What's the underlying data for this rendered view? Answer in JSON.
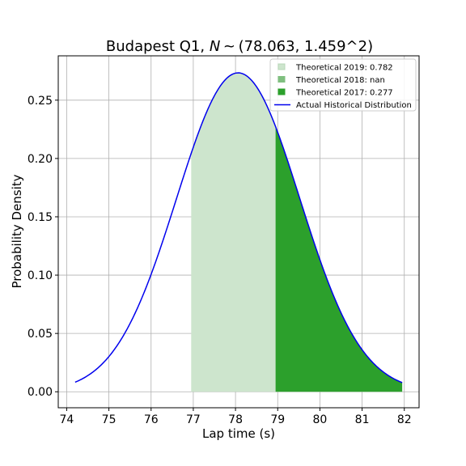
{
  "chart_data": {
    "type": "area",
    "title": "Budapest Q1,  N ~ (78.063, 1.459^2)",
    "title_parts": {
      "place": "Budapest Q1, ",
      "var": "N",
      "rest": " ~ (78.063, 1.459^2)"
    },
    "xlabel": "Lap time (s)",
    "ylabel": "Probability Density",
    "xlim": [
      73.8,
      82.35
    ],
    "ylim": [
      -0.0137,
      0.288
    ],
    "xticks": [
      74,
      75,
      76,
      77,
      78,
      79,
      80,
      81,
      82
    ],
    "yticks": [
      0.0,
      0.05,
      0.1,
      0.15,
      0.2,
      0.25
    ],
    "ytick_labels": [
      "0.00",
      "0.05",
      "0.10",
      "0.15",
      "0.20",
      "0.25"
    ],
    "grid": true,
    "legend_position": "top-right",
    "distribution": {
      "mean": 78.063,
      "std": 1.459,
      "peak_scale": 0.2734,
      "x_start": 74.2,
      "x_end": 81.95
    },
    "series": [
      {
        "name": "Theoretical 2019: 0.782",
        "kind": "fill",
        "from": 76.95,
        "to": 81.95,
        "color": "#cde5cd"
      },
      {
        "name": "Theoretical 2018: nan",
        "kind": "fill",
        "from": null,
        "to": null,
        "color": "#7fbf7f"
      },
      {
        "name": "Theoretical 2017: 0.277",
        "kind": "fill",
        "from": 78.95,
        "to": 81.95,
        "color": "#2ca02c"
      },
      {
        "name": "Actual Historical Distribution",
        "kind": "line",
        "color": "#0000ee"
      }
    ]
  }
}
